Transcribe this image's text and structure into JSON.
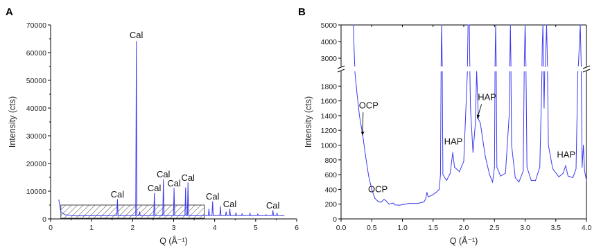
{
  "chart_data": [
    {
      "type": "line",
      "panel_label": "A",
      "xlabel": "Q (Å⁻¹)",
      "ylabel": "Intensity (cts)",
      "xlim": [
        0,
        6
      ],
      "ylim": [
        0,
        70000
      ],
      "xticks": [
        0,
        1,
        2,
        3,
        4,
        5,
        6
      ],
      "yticks": [
        0,
        10000,
        20000,
        30000,
        40000,
        50000,
        60000,
        70000
      ],
      "line_color": "#3a3af0",
      "baseline": 1000,
      "peaks": [
        {
          "x": 1.63,
          "y": 7000
        },
        {
          "x": 2.09,
          "y": 64000
        },
        {
          "x": 2.17,
          "y": 2500
        },
        {
          "x": 2.53,
          "y": 9200
        },
        {
          "x": 2.75,
          "y": 14200
        },
        {
          "x": 3.01,
          "y": 11000
        },
        {
          "x": 3.29,
          "y": 11200
        },
        {
          "x": 3.35,
          "y": 13000
        },
        {
          "x": 3.86,
          "y": 3500
        },
        {
          "x": 3.95,
          "y": 6200
        },
        {
          "x": 4.14,
          "y": 4500
        },
        {
          "x": 4.28,
          "y": 2500
        },
        {
          "x": 4.37,
          "y": 3500
        },
        {
          "x": 4.52,
          "y": 2200
        },
        {
          "x": 4.67,
          "y": 1800
        },
        {
          "x": 4.86,
          "y": 2000
        },
        {
          "x": 5.05,
          "y": 1700
        },
        {
          "x": 5.25,
          "y": 1500
        },
        {
          "x": 5.42,
          "y": 3000
        },
        {
          "x": 5.52,
          "y": 2000
        }
      ],
      "annotations": [
        {
          "text": "Cal",
          "x": 1.63,
          "y": 7800
        },
        {
          "text": "Cal",
          "x": 2.09,
          "y": 65200
        },
        {
          "text": "Cal",
          "x": 2.53,
          "y": 10000
        },
        {
          "text": "Cal",
          "x": 2.75,
          "y": 15000
        },
        {
          "text": "Cal",
          "x": 3.01,
          "y": 11800
        },
        {
          "text": "Cal",
          "x": 3.35,
          "y": 13800
        },
        {
          "text": "Cal",
          "x": 3.95,
          "y": 7000
        },
        {
          "text": "Cal",
          "x": 4.37,
          "y": 4300
        },
        {
          "text": "Cal",
          "x": 5.42,
          "y": 3800
        }
      ],
      "hatched_region": {
        "x": [
          0.25,
          3.75
        ],
        "y": [
          0,
          5000
        ]
      }
    },
    {
      "type": "line",
      "panel_label": "B",
      "xlabel": "Q (Å⁻¹)",
      "ylabel": "Intensity (cts)",
      "xlim": [
        0,
        4
      ],
      "ylim_lower": [
        0,
        2000
      ],
      "ylim_upper": [
        2500,
        5000
      ],
      "axis_break": true,
      "xticks": [
        "0.0",
        "0.5",
        "1.0",
        "1.5",
        "2.0",
        "2.5",
        "3.0",
        "3.5",
        "4.0"
      ],
      "yticks_lower": [
        0,
        200,
        400,
        600,
        800,
        1000,
        1200,
        1400,
        1600,
        1800
      ],
      "yticks_upper": [
        3000,
        4000,
        5000
      ],
      "line_color": "#3a3af0",
      "points": [
        [
          0.2,
          5000
        ],
        [
          0.22,
          2700
        ],
        [
          0.23,
          1950
        ],
        [
          0.26,
          1700
        ],
        [
          0.3,
          1400
        ],
        [
          0.35,
          1150
        ],
        [
          0.4,
          850
        ],
        [
          0.45,
          580
        ],
        [
          0.5,
          400
        ],
        [
          0.55,
          280
        ],
        [
          0.6,
          240
        ],
        [
          0.65,
          225
        ],
        [
          0.7,
          265
        ],
        [
          0.74,
          240
        ],
        [
          0.78,
          200
        ],
        [
          0.85,
          215
        ],
        [
          0.88,
          190
        ],
        [
          0.95,
          185
        ],
        [
          1.05,
          200
        ],
        [
          1.1,
          210
        ],
        [
          1.25,
          210
        ],
        [
          1.35,
          230
        ],
        [
          1.38,
          270
        ],
        [
          1.4,
          360
        ],
        [
          1.42,
          300
        ],
        [
          1.48,
          320
        ],
        [
          1.55,
          360
        ],
        [
          1.6,
          400
        ],
        [
          1.62,
          600
        ],
        [
          1.64,
          5000
        ],
        [
          1.66,
          600
        ],
        [
          1.72,
          520
        ],
        [
          1.78,
          620
        ],
        [
          1.82,
          900
        ],
        [
          1.85,
          700
        ],
        [
          1.93,
          640
        ],
        [
          2.0,
          780
        ],
        [
          2.05,
          1800
        ],
        [
          2.07,
          5000
        ],
        [
          2.09,
          5000
        ],
        [
          2.11,
          1500
        ],
        [
          2.15,
          900
        ],
        [
          2.19,
          1300
        ],
        [
          2.21,
          2000
        ],
        [
          2.24,
          1350
        ],
        [
          2.27,
          1300
        ],
        [
          2.35,
          850
        ],
        [
          2.42,
          600
        ],
        [
          2.47,
          500
        ],
        [
          2.5,
          700
        ],
        [
          2.52,
          5000
        ],
        [
          2.54,
          700
        ],
        [
          2.6,
          580
        ],
        [
          2.68,
          620
        ],
        [
          2.74,
          1400
        ],
        [
          2.76,
          5000
        ],
        [
          2.78,
          1000
        ],
        [
          2.84,
          560
        ],
        [
          2.9,
          500
        ],
        [
          2.97,
          650
        ],
        [
          3.0,
          5000
        ],
        [
          3.03,
          700
        ],
        [
          3.1,
          520
        ],
        [
          3.17,
          520
        ],
        [
          3.24,
          700
        ],
        [
          3.27,
          1800
        ],
        [
          3.28,
          3800
        ],
        [
          3.29,
          5000
        ],
        [
          3.31,
          1500
        ],
        [
          3.33,
          2500
        ],
        [
          3.35,
          5000
        ],
        [
          3.38,
          1000
        ],
        [
          3.45,
          680
        ],
        [
          3.55,
          570
        ],
        [
          3.62,
          620
        ],
        [
          3.66,
          720
        ],
        [
          3.7,
          580
        ],
        [
          3.78,
          560
        ],
        [
          3.83,
          680
        ],
        [
          3.86,
          2000
        ],
        [
          3.87,
          2700
        ],
        [
          3.9,
          5000
        ],
        [
          3.93,
          700
        ],
        [
          3.95,
          1000
        ],
        [
          3.97,
          650
        ],
        [
          4.0,
          520
        ]
      ],
      "annotations": [
        {
          "text": "OCP",
          "x": 0.45,
          "y": 1500,
          "arrow_to": [
            0.35,
            1130
          ]
        },
        {
          "text": "OCP",
          "x": 0.6,
          "y": 360
        },
        {
          "text": "HAP",
          "x": 1.83,
          "y": 1010
        },
        {
          "text": "HAP",
          "x": 2.38,
          "y": 1610,
          "arrow_to": [
            2.22,
            1360
          ]
        },
        {
          "text": "HAP",
          "x": 3.67,
          "y": 830
        }
      ]
    }
  ]
}
